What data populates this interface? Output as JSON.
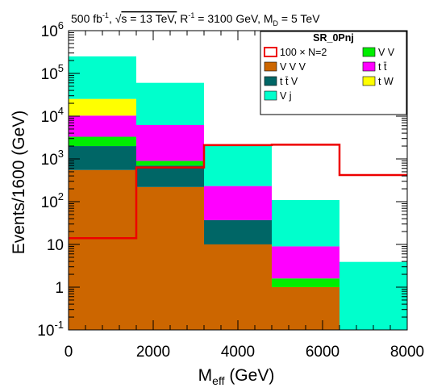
{
  "chart_data": {
    "type": "bar",
    "stacked": true,
    "header": {
      "prefix": "500 fb",
      "prefix_sup": "-1",
      "sqrt_s": "s = 13 TeV,",
      "r": "R",
      "r_sup": "-1",
      "r_value": " = 3100 GeV, M",
      "md_sub": "D",
      "md_value": " = 5 TeV"
    },
    "xlabel": "M",
    "xlabel_sub": "eff",
    "xlabel_unit": " (GeV)",
    "ylabel": "Events/1600 (GeV)",
    "log_y": true,
    "xlim": [
      0,
      8000
    ],
    "ylim": [
      0.1,
      1000000
    ],
    "x_ticks": [
      "0",
      "2000",
      "4000",
      "6000",
      "8000"
    ],
    "y_ticks": [
      {
        "base": "10",
        "exp": "-1",
        "value": 0.1
      },
      {
        "base": "1",
        "exp": "",
        "value": 1
      },
      {
        "base": "10",
        "exp": "",
        "value": 10
      },
      {
        "base": "10",
        "exp": "2",
        "value": 100
      },
      {
        "base": "10",
        "exp": "3",
        "value": 1000
      },
      {
        "base": "10",
        "exp": "4",
        "value": 10000
      },
      {
        "base": "10",
        "exp": "5",
        "value": 100000
      },
      {
        "base": "10",
        "exp": "6",
        "value": 1000000
      }
    ],
    "bin_edges": [
      0,
      1600,
      3200,
      4800,
      6400,
      8000
    ],
    "stack_order": [
      "V V V",
      "t t̄ V",
      "V V",
      "t t̄",
      "t W",
      "V j"
    ],
    "series": [
      {
        "name": "V V V",
        "color": "#cc6600",
        "values": [
          550,
          220,
          10,
          1.0,
          0.1
        ]
      },
      {
        "name": "t t̄ V",
        "color": "#006666",
        "values": [
          1450,
          480,
          27,
          0,
          0
        ]
      },
      {
        "name": "V V",
        "color": "#00ee00",
        "values": [
          1300,
          200,
          0,
          0.6,
          0
        ]
      },
      {
        "name": "t t̄",
        "color": "#ff00ff",
        "values": [
          7000,
          5300,
          195,
          7.4,
          0
        ]
      },
      {
        "name": "t W",
        "color": "#ffff00",
        "values": [
          15000,
          0,
          0,
          0,
          0
        ]
      },
      {
        "name": "V j",
        "color": "#00ffcc",
        "values": [
          225000,
          54000,
          1880,
          100,
          3.8
        ]
      }
    ],
    "signal": {
      "name": "100 × N=2",
      "color": "#ee0000",
      "values": [
        14,
        630,
        2100,
        2150,
        420
      ]
    },
    "legend": {
      "title": "SR_0Pnj",
      "placement": "top-right",
      "entries_left": [
        {
          "label": "100 × N=2",
          "color": "#ee0000",
          "style": "line"
        },
        {
          "label": "V V V",
          "color": "#cc6600",
          "style": "fill"
        },
        {
          "label": "t t̄ V",
          "color": "#006666",
          "style": "fill"
        },
        {
          "label": "V j",
          "color": "#00ffcc",
          "style": "fill"
        }
      ],
      "entries_right": [
        {
          "label": "V V",
          "color": "#00ee00",
          "style": "fill"
        },
        {
          "label": "t t̄",
          "color": "#ff00ff",
          "style": "fill"
        },
        {
          "label": "t W",
          "color": "#ffff00",
          "style": "fill"
        }
      ]
    }
  }
}
